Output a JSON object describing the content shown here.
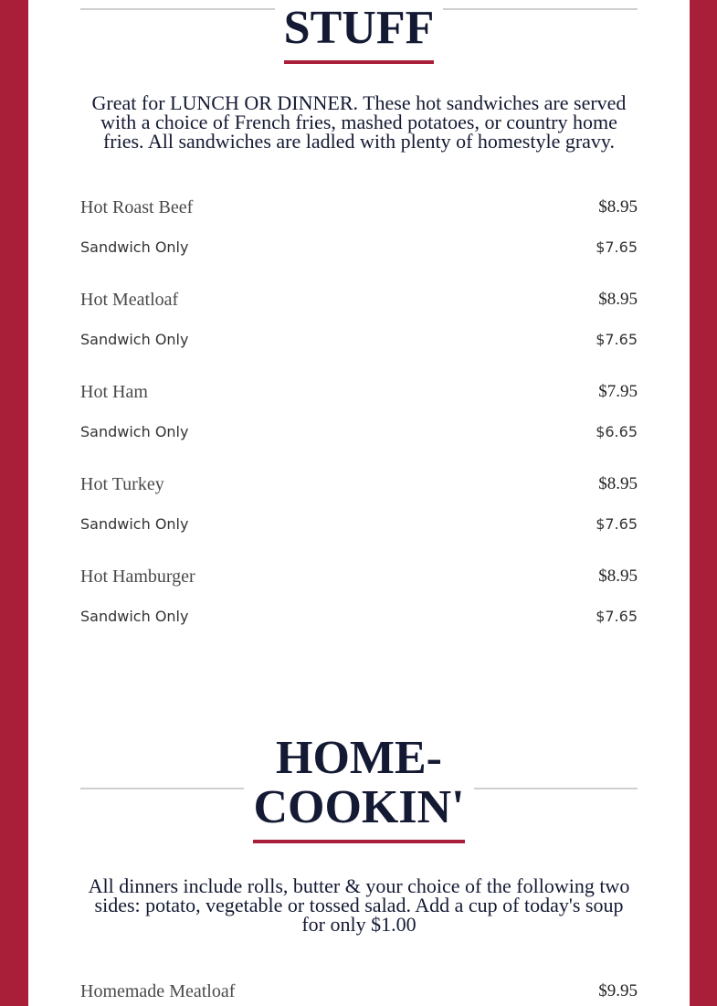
{
  "sections": [
    {
      "title": "HOT STUFF",
      "description": "Great for LUNCH OR DINNER. These hot sandwiches are served with a choice of French fries, mashed potatoes, or country home fries. All sandwiches are ladled with plenty of homestyle gravy.",
      "items": [
        {
          "name": "Hot Roast Beef",
          "price": "$8.95",
          "sub_label": "Sandwich Only",
          "sub_price": "$7.65"
        },
        {
          "name": "Hot Meatloaf",
          "price": "$8.95",
          "sub_label": "Sandwich Only",
          "sub_price": "$7.65"
        },
        {
          "name": "Hot Ham",
          "price": "$7.95",
          "sub_label": "Sandwich Only",
          "sub_price": "$6.65"
        },
        {
          "name": "Hot Turkey",
          "price": "$8.95",
          "sub_label": "Sandwich Only",
          "sub_price": "$7.65"
        },
        {
          "name": "Hot Hamburger",
          "price": "$8.95",
          "sub_label": "Sandwich Only",
          "sub_price": "$7.65"
        }
      ]
    },
    {
      "title": "HOME-COOKIN'",
      "description": "All dinners include rolls, butter & your choice of the following two sides: potato, vegetable or tossed salad. Add a cup of today's soup for only $1.00",
      "items": [
        {
          "name": "Homemade Meatloaf",
          "price": "$9.95"
        }
      ]
    }
  ]
}
